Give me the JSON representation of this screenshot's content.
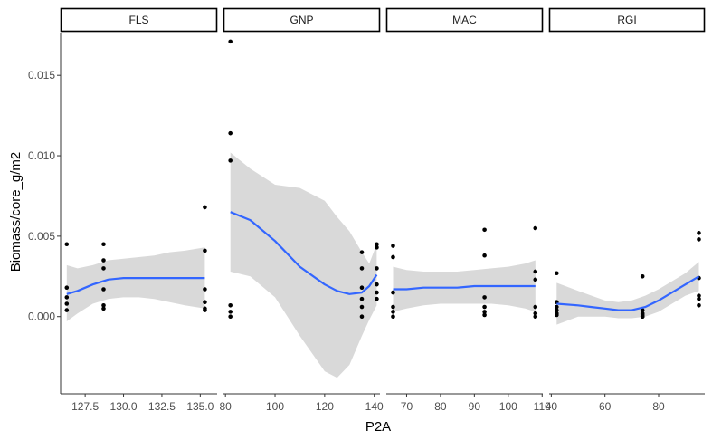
{
  "chart_data": {
    "type": "scatter",
    "title": "",
    "xlabel": "P2A",
    "ylabel": "Biomass/core_g/m2",
    "ylim": [
      -0.0048,
      0.0176
    ],
    "y_ticks": [
      0.0,
      0.005,
      0.01,
      0.015
    ],
    "y_tick_labels": [
      "0.000",
      "0.005",
      "0.010",
      "0.015"
    ],
    "grid": false,
    "facet_scales": "free_x",
    "colors": {
      "points": "#000000",
      "smooth_line": "#3366FF",
      "ribbon": "#D9D9D9",
      "strip_border": "#000000"
    },
    "facets": [
      {
        "name": "FLS",
        "xlim": [
          125.9,
          136.1
        ],
        "x_ticks": [
          127.5,
          130.0,
          132.5,
          135.0
        ],
        "x_tick_labels": [
          "127.5",
          "130.0",
          "132.5",
          "135.0"
        ],
        "points": [
          [
            126.3,
            0.0045
          ],
          [
            126.3,
            0.0018
          ],
          [
            126.3,
            0.0012
          ],
          [
            126.3,
            0.0008
          ],
          [
            126.3,
            0.0004
          ],
          [
            128.7,
            0.0045
          ],
          [
            128.7,
            0.0035
          ],
          [
            128.7,
            0.003
          ],
          [
            128.7,
            0.0017
          ],
          [
            128.7,
            0.0007
          ],
          [
            128.7,
            0.0005
          ],
          [
            135.3,
            0.0068
          ],
          [
            135.3,
            0.0041
          ],
          [
            135.3,
            0.0017
          ],
          [
            135.3,
            0.0009
          ],
          [
            135.3,
            0.0005
          ],
          [
            135.3,
            0.0004
          ]
        ],
        "smooth": {
          "x": [
            126.3,
            127.0,
            128.0,
            129.0,
            130.0,
            131.0,
            132.0,
            133.0,
            134.0,
            135.3
          ],
          "y": [
            0.0014,
            0.0016,
            0.002,
            0.0023,
            0.0024,
            0.0024,
            0.0024,
            0.0024,
            0.0024,
            0.0024
          ],
          "lower": [
            -0.0003,
            0.0002,
            0.0008,
            0.0011,
            0.0012,
            0.0012,
            0.0011,
            0.0009,
            0.0007,
            0.0005
          ],
          "upper": [
            0.0032,
            0.003,
            0.0032,
            0.0035,
            0.0036,
            0.0037,
            0.0038,
            0.004,
            0.0041,
            0.0043
          ]
        }
      },
      {
        "name": "GNP",
        "xlim": [
          79.2,
          142.3
        ],
        "x_ticks": [
          80,
          100,
          120,
          140
        ],
        "x_tick_labels": [
          "80",
          "100",
          "120",
          "140"
        ],
        "points": [
          [
            82,
            0.0171
          ],
          [
            82,
            0.0114
          ],
          [
            82,
            0.0097
          ],
          [
            82,
            0.0007
          ],
          [
            82,
            0.0003
          ],
          [
            82,
            0.0
          ],
          [
            135,
            0.004
          ],
          [
            135,
            0.003
          ],
          [
            135,
            0.0018
          ],
          [
            135,
            0.0011
          ],
          [
            135,
            0.0006
          ],
          [
            135,
            0.0
          ],
          [
            141,
            0.0045
          ],
          [
            141,
            0.0043
          ],
          [
            141,
            0.003
          ],
          [
            141,
            0.002
          ],
          [
            141,
            0.0015
          ],
          [
            141,
            0.0011
          ]
        ],
        "smooth": {
          "x": [
            82,
            90,
            100,
            110,
            120,
            125,
            130,
            135,
            138,
            141
          ],
          "y": [
            0.0065,
            0.006,
            0.0047,
            0.0031,
            0.002,
            0.0016,
            0.0014,
            0.0015,
            0.0019,
            0.0026
          ],
          "lower": [
            0.0028,
            0.0025,
            0.0012,
            -0.0012,
            -0.0034,
            -0.0038,
            -0.003,
            -0.0012,
            -0.0002,
            0.0007
          ],
          "upper": [
            0.0102,
            0.0092,
            0.0082,
            0.008,
            0.0072,
            0.0062,
            0.0053,
            0.004,
            0.0033,
            0.0045
          ]
        }
      },
      {
        "name": "MAC",
        "xlim": [
          64.0,
          110.2
        ],
        "x_ticks": [
          70,
          80,
          90,
          100,
          110
        ],
        "x_tick_labels": [
          "70",
          "80",
          "90",
          "100",
          "110"
        ],
        "points": [
          [
            66,
            0.0044
          ],
          [
            66,
            0.0037
          ],
          [
            66,
            0.0015
          ],
          [
            66,
            0.0006
          ],
          [
            66,
            0.0003
          ],
          [
            66,
            0.0
          ],
          [
            93,
            0.0054
          ],
          [
            93,
            0.0038
          ],
          [
            93,
            0.0012
          ],
          [
            93,
            0.0006
          ],
          [
            93,
            0.0003
          ],
          [
            93,
            0.0001
          ],
          [
            108,
            0.0055
          ],
          [
            108,
            0.0028
          ],
          [
            108,
            0.0023
          ],
          [
            108,
            0.0006
          ],
          [
            108,
            0.0002
          ],
          [
            108,
            0.0
          ]
        ],
        "smooth": {
          "x": [
            66,
            70,
            75,
            80,
            85,
            90,
            95,
            100,
            105,
            108
          ],
          "y": [
            0.0017,
            0.0017,
            0.0018,
            0.0018,
            0.0018,
            0.0019,
            0.0019,
            0.0019,
            0.0019,
            0.0019
          ],
          "lower": [
            0.0003,
            0.0005,
            0.0007,
            0.0008,
            0.0008,
            0.0008,
            0.0008,
            0.0007,
            0.0005,
            0.0003
          ],
          "upper": [
            0.0031,
            0.0029,
            0.0028,
            0.0028,
            0.0028,
            0.0029,
            0.003,
            0.0031,
            0.0033,
            0.0035
          ]
        }
      },
      {
        "name": "RGI",
        "xlim": [
          39.2,
          97.2
        ],
        "x_ticks": [
          40,
          60,
          80
        ],
        "x_tick_labels": [
          "40",
          "60",
          "80"
        ],
        "points": [
          [
            42,
            0.0027
          ],
          [
            42,
            0.0009
          ],
          [
            42,
            0.0006
          ],
          [
            42,
            0.0004
          ],
          [
            42,
            0.0002
          ],
          [
            42,
            0.0001
          ],
          [
            74,
            0.0025
          ],
          [
            74,
            0.0004
          ],
          [
            74,
            0.0002
          ],
          [
            74,
            0.0001
          ],
          [
            74,
            0.0
          ],
          [
            74,
            0.0
          ],
          [
            95,
            0.0052
          ],
          [
            95,
            0.0048
          ],
          [
            95,
            0.0024
          ],
          [
            95,
            0.0013
          ],
          [
            95,
            0.0011
          ],
          [
            95,
            0.0007
          ]
        ],
        "smooth": {
          "x": [
            42,
            50,
            55,
            60,
            65,
            70,
            75,
            80,
            85,
            90,
            95
          ],
          "y": [
            0.0008,
            0.0007,
            0.0006,
            0.0005,
            0.0004,
            0.0004,
            0.0006,
            0.001,
            0.0015,
            0.002,
            0.0025
          ],
          "lower": [
            -0.0005,
            0.0,
            0.0,
            0.0,
            -0.0001,
            -0.0001,
            0.0,
            0.0003,
            0.0008,
            0.0013,
            0.0016
          ],
          "upper": [
            0.0021,
            0.0016,
            0.0013,
            0.001,
            0.0009,
            0.001,
            0.0013,
            0.0017,
            0.0022,
            0.0027,
            0.0034
          ]
        }
      }
    ]
  }
}
